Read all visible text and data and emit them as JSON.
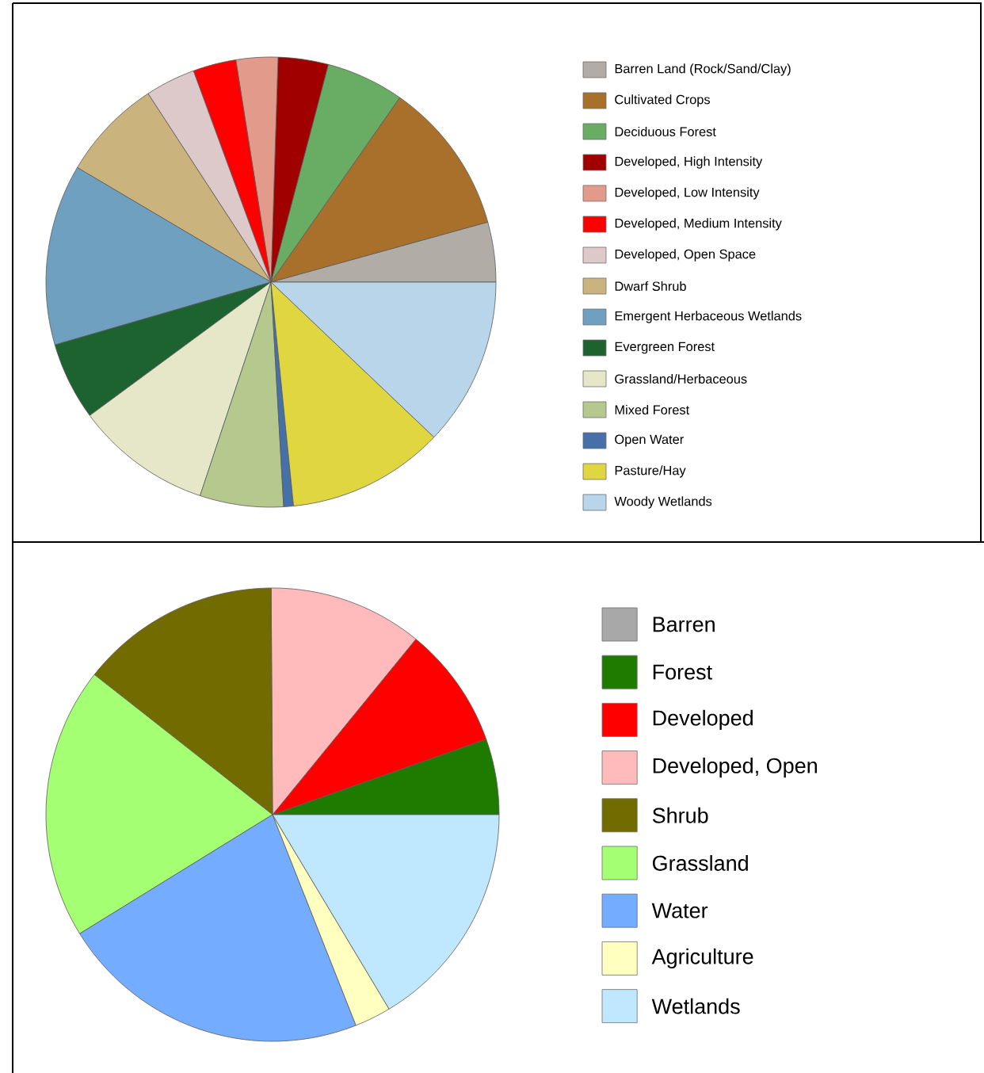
{
  "chart_data": [
    {
      "type": "pie",
      "legend": "right",
      "categories": [
        "Barren Land (Rock/Sand/Clay)",
        "Cultivated Crops",
        "Deciduous Forest",
        "Developed, High Intensity",
        "Developed, Low Intensity",
        "Developed, Medium Intensity",
        "Developed, Open Space",
        "Dwarf Shrub",
        "Emergent Herbaceous Wetlands",
        "Evergreen Forest",
        "Grassland/Herbaceous",
        "Mixed Forest",
        "Open Water",
        "Pasture/Hay",
        "Woody Wetlands"
      ],
      "values": [
        4.3,
        11.0,
        5.6,
        3.6,
        3.0,
        3.1,
        3.6,
        7.3,
        13.0,
        5.6,
        9.8,
        6.0,
        0.7,
        11.3,
        12.1
      ],
      "colors": [
        "#b2aca6",
        "#a9702b",
        "#68ad63",
        "#a00000",
        "#e29b8b",
        "#ff0000",
        "#ddc9c9",
        "#cbb37e",
        "#6fa0bf",
        "#1c6330",
        "#e6e6c8",
        "#b5c98f",
        "#4670a8",
        "#dfd640",
        "#b9d5ea"
      ]
    },
    {
      "type": "pie",
      "legend": "right",
      "categories": [
        "Barren",
        "Forest",
        "Developed",
        "Developed, Open",
        "Shrub",
        "Grassland",
        "Water",
        "Agriculture",
        "Wetlands"
      ],
      "values": [
        0,
        5.4,
        8.7,
        11.0,
        14.3,
        19.4,
        22.2,
        2.6,
        16.4
      ],
      "colors": [
        "#a8a8a8",
        "#1e7b00",
        "#ff0000",
        "#ffbbbb",
        "#716b00",
        "#a5ff73",
        "#74adff",
        "#ffffc0",
        "#bfe8ff"
      ]
    }
  ]
}
